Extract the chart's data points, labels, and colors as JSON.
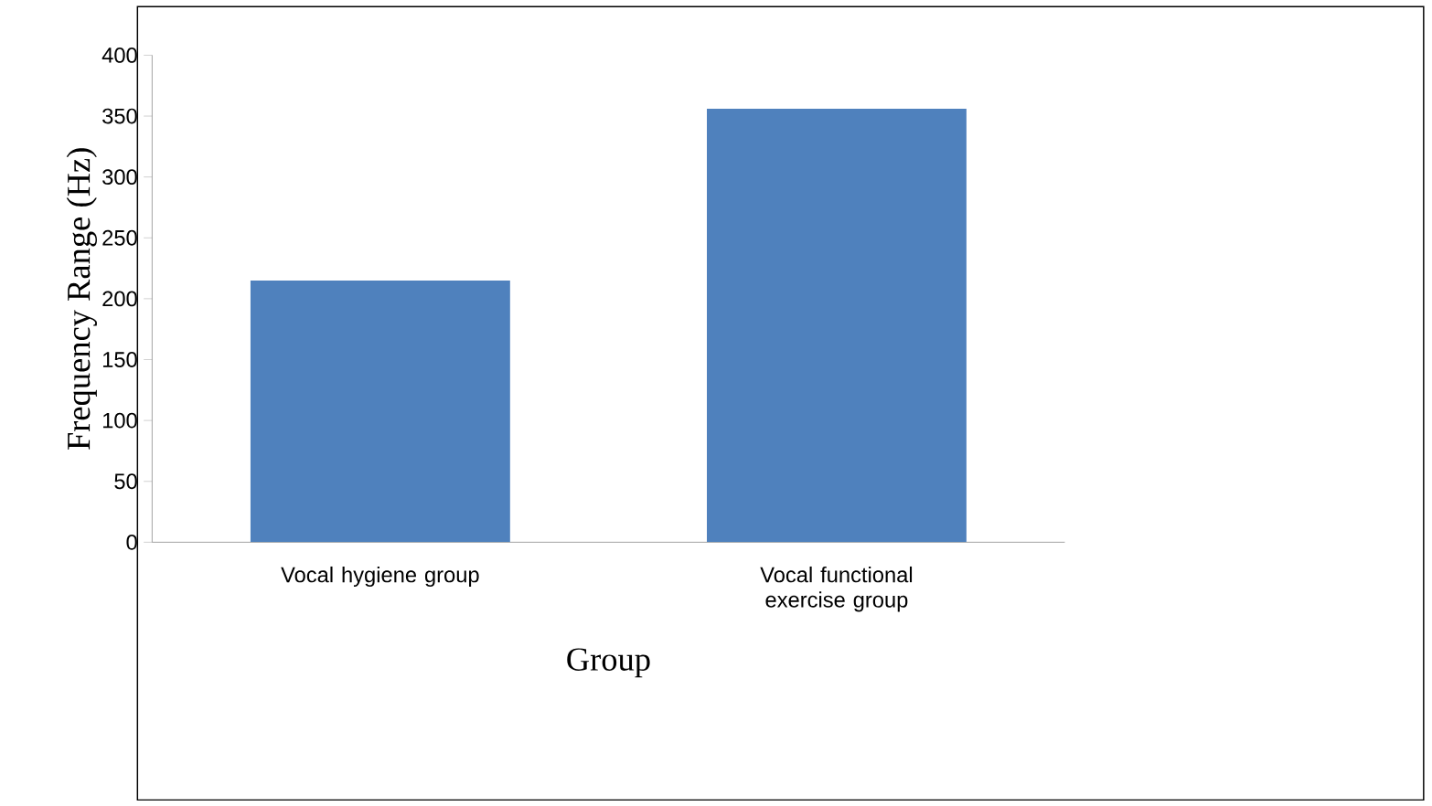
{
  "chart_data": {
    "type": "bar",
    "xlabel": "Group",
    "ylabel": "Frequency Range (Hz)",
    "categories": [
      "Vocal hygiene group",
      "Vocal functional exercise group"
    ],
    "values": [
      215,
      356
    ],
    "color": "#4f81bd",
    "ylim": [
      0,
      400
    ],
    "yticks": [
      0,
      50,
      100,
      150,
      200,
      250,
      300,
      350,
      400
    ],
    "grid": false
  }
}
